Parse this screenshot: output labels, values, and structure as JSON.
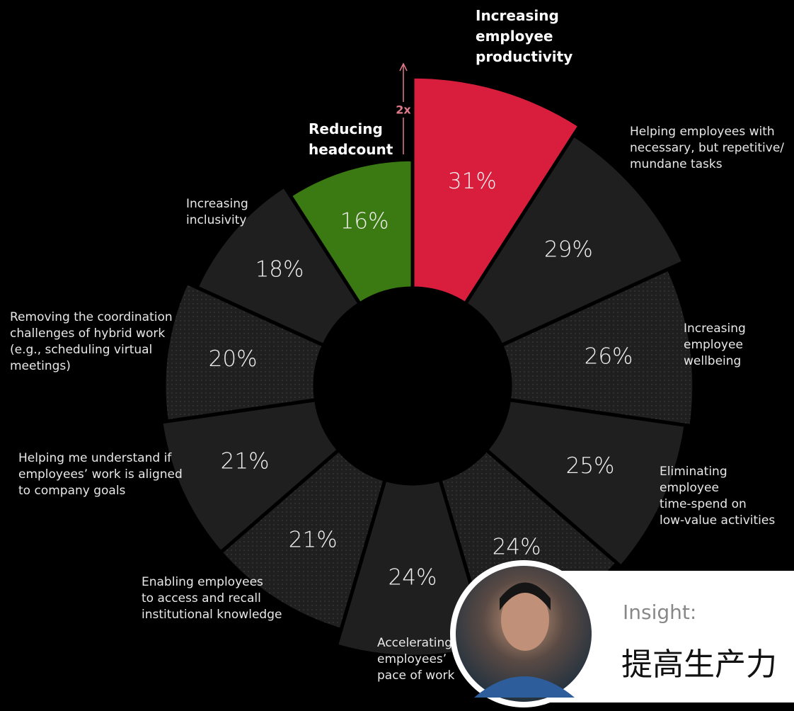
{
  "chart_data": {
    "type": "radial_bar",
    "categories": [
      "Increasing\nemployee\nproductivity",
      "Helping employees with\nnecessary, but repetitive/\nmundane tasks",
      "Increasing\nemployee\nwellbeing",
      "Eliminating\nemployee\ntime-spend on\nlow-value activities",
      null,
      "Accelerating\nemployees’\npace of work",
      "Enabling employees\nto access and recall\ninstitutional knowledge",
      "Helping me understand if\nemployees’ work is aligned\nto company goals",
      "Removing the coordination\nchallenges of hybrid work\n(e.g., scheduling virtual\nmeetings)",
      "Increasing\ninclusivity",
      "Reducing\nheadcount"
    ],
    "values": [
      31,
      29,
      26,
      25,
      24,
      24,
      21,
      21,
      20,
      18,
      16
    ],
    "value_labels": [
      "31%",
      "29%",
      "26%",
      "25%",
      "24%",
      "24%",
      "21%",
      "21%",
      "20%",
      "18%",
      "16%"
    ],
    "colors": [
      "#d81e3c",
      "#1f1f1f",
      "#1f1f1f",
      "#1f1f1f",
      "#1f1f1f",
      "#1f1f1f",
      "#1f1f1f",
      "#1f1f1f",
      "#1f1f1f",
      "#1f1f1f",
      "#3b7a12"
    ],
    "highlighted": [
      0,
      10
    ],
    "annotations": [
      "2x"
    ]
  },
  "insight": {
    "label": "Insight:",
    "text": "提高生产力"
  }
}
